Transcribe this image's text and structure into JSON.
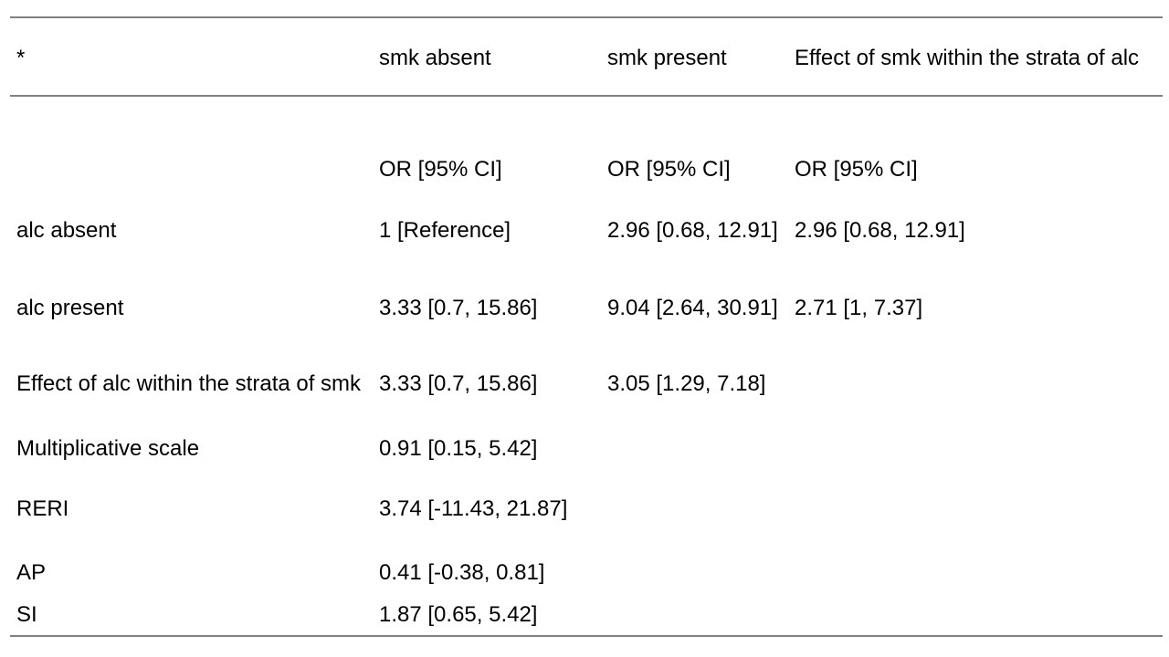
{
  "colors": {
    "background": "#ffffff",
    "border": "#808080",
    "text": "#000000"
  },
  "table": {
    "header": {
      "col0": "*",
      "col1": "smk absent",
      "col2": "smk present",
      "col3": "Effect of smk within the strata of alc"
    },
    "rows": [
      {
        "id": "measure-header",
        "cells": [
          "",
          "OR [95% CI]",
          "OR [95% CI]",
          "OR [95% CI]"
        ]
      },
      {
        "id": "alc-absent",
        "cells": [
          "alc absent",
          "1 [Reference]",
          "2.96 [0.68, 12.91]",
          "2.96 [0.68, 12.91]"
        ]
      },
      {
        "id": "alc-present",
        "cells": [
          "alc present",
          "3.33 [0.7, 15.86]",
          "9.04 [2.64, 30.91]",
          "2.71 [1, 7.37]"
        ]
      },
      {
        "id": "effect-of-alc",
        "cells": [
          "Effect of alc within the strata of smk",
          "3.33 [0.7, 15.86]",
          "3.05 [1.29, 7.18]",
          ""
        ]
      },
      {
        "id": "multiplicative-scale",
        "cells": [
          "Multiplicative scale",
          "0.91 [0.15, 5.42]",
          "",
          ""
        ]
      },
      {
        "id": "reri",
        "cells": [
          "RERI",
          "3.74 [-11.43, 21.87]",
          "",
          ""
        ]
      },
      {
        "id": "ap",
        "cells": [
          "AP",
          "0.41 [-0.38, 0.81]",
          "",
          ""
        ]
      },
      {
        "id": "si",
        "cells": [
          "SI",
          "1.87 [0.65, 5.42]",
          "",
          ""
        ]
      }
    ]
  }
}
